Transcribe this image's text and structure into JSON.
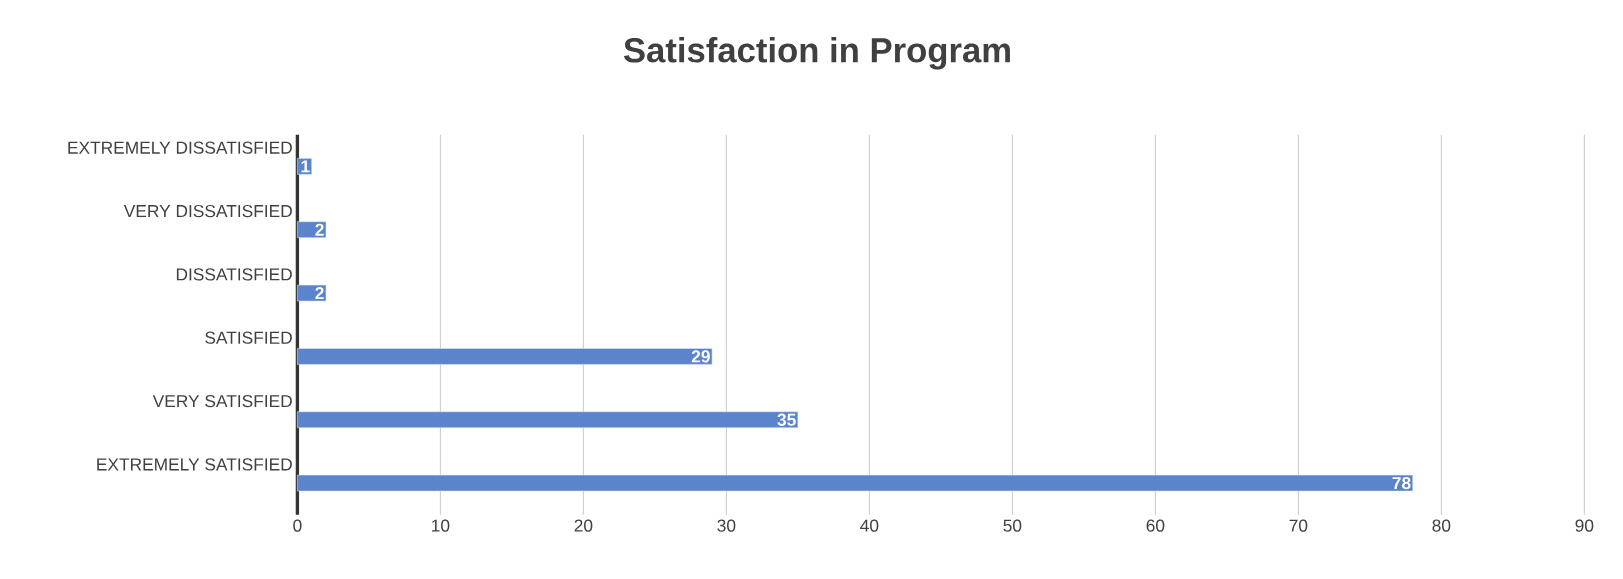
{
  "chart_data": {
    "type": "bar",
    "orientation": "horizontal",
    "title": "Satisfaction in Program",
    "categories": [
      "EXTREMELY DISSATISFIED",
      "VERY DISSATISFIED",
      "DISSATISFIED",
      "SATISFIED",
      "VERY SATISFIED",
      "EXTREMELY SATISFIED"
    ],
    "values": [
      1,
      2,
      2,
      29,
      35,
      78
    ],
    "color": "#5b84cc",
    "data_labels": true,
    "xlim": [
      0,
      90
    ],
    "xticks": [
      0,
      10,
      20,
      30,
      40,
      50,
      60,
      70,
      80,
      90
    ],
    "grid": "x"
  }
}
